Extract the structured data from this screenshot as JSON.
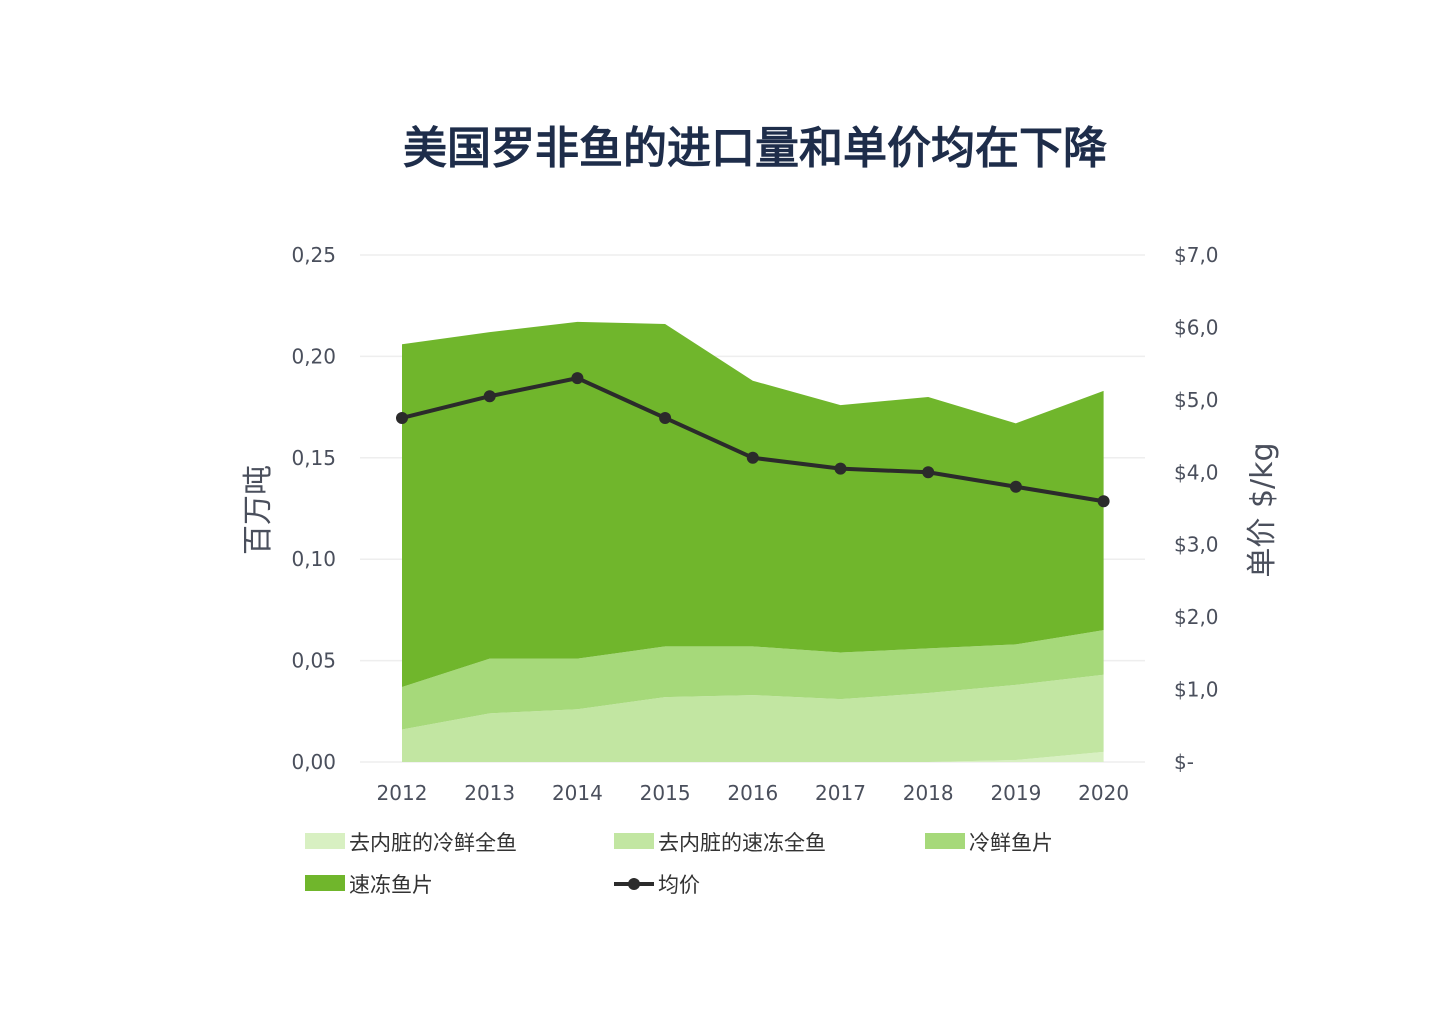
{
  "chart_data": {
    "type": "area",
    "title": "美国罗非鱼的进口量和单价均在下降",
    "ylabel": "百万吨",
    "y2label": "单价 $/kg",
    "categories": [
      "2012",
      "2013",
      "2014",
      "2015",
      "2016",
      "2017",
      "2018",
      "2019",
      "2020"
    ],
    "yticks": [
      "0,00",
      "0,05",
      "0,10",
      "0,15",
      "0,20",
      "0,25"
    ],
    "y2ticks": [
      "$-",
      "$1,0",
      "$2,0",
      "$3,0",
      "$4,0",
      "$5,0",
      "$6,0",
      "$7,0"
    ],
    "ylim": [
      0,
      0.25
    ],
    "y2lim": [
      0,
      7
    ],
    "stacked": true,
    "grid": true,
    "legend_position": "bottom",
    "series": [
      {
        "name": "去内脏的冷鲜全鱼",
        "color": "#d8f0c2",
        "values": [
          0,
          0,
          0,
          0,
          0,
          0,
          0,
          0.001,
          0.005
        ]
      },
      {
        "name": "去内脏的速冻全鱼",
        "color": "#c2e6a2",
        "values": [
          0.016,
          0.024,
          0.026,
          0.032,
          0.033,
          0.031,
          0.034,
          0.037,
          0.038
        ]
      },
      {
        "name": "冷鲜鱼片",
        "color": "#a6d97a",
        "values": [
          0.021,
          0.027,
          0.025,
          0.025,
          0.024,
          0.023,
          0.022,
          0.02,
          0.022
        ]
      },
      {
        "name": "速冻鱼片",
        "color": "#70b62c",
        "values": [
          0.169,
          0.161,
          0.166,
          0.159,
          0.131,
          0.122,
          0.124,
          0.109,
          0.118
        ]
      }
    ],
    "line_series": {
      "name": "均价",
      "color": "#2b2b2b",
      "axis": "right",
      "values": [
        4.75,
        5.05,
        5.3,
        4.75,
        4.2,
        4.05,
        4.0,
        3.8,
        3.6
      ]
    }
  }
}
